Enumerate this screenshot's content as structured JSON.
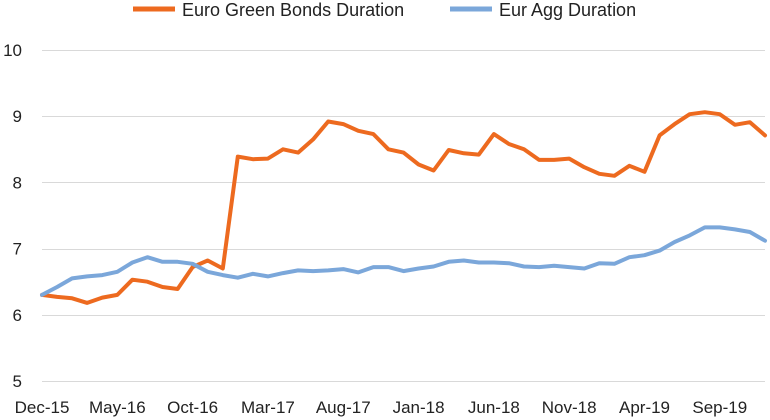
{
  "chart_data": {
    "type": "line",
    "title": "",
    "xlabel": "",
    "ylabel": "",
    "ylim": [
      5,
      10
    ],
    "yticks": [
      5,
      6,
      7,
      8,
      9,
      10
    ],
    "grid": "horizontal",
    "legend_position": "top",
    "x_tick_labels": [
      "Dec-15",
      "May-16",
      "Oct-16",
      "Mar-17",
      "Aug-17",
      "Jan-18",
      "Jun-18",
      "Nov-18",
      "Apr-19",
      "Sep-19"
    ],
    "x": [
      "Dec-15",
      "Jan-16",
      "Feb-16",
      "Mar-16",
      "Apr-16",
      "May-16",
      "Jun-16",
      "Jul-16",
      "Aug-16",
      "Sep-16",
      "Oct-16",
      "Nov-16",
      "Dec-16",
      "Jan-17",
      "Feb-17",
      "Mar-17",
      "Apr-17",
      "May-17",
      "Jun-17",
      "Jul-17",
      "Aug-17",
      "Sep-17",
      "Oct-17",
      "Nov-17",
      "Dec-17",
      "Jan-18",
      "Feb-18",
      "Mar-18",
      "Apr-18",
      "May-18",
      "Jun-18",
      "Jul-18",
      "Aug-18",
      "Sep-18",
      "Oct-18",
      "Nov-18",
      "Dec-18",
      "Jan-19",
      "Feb-19",
      "Mar-19",
      "Apr-19",
      "May-19",
      "Jun-19",
      "Jul-19",
      "Aug-19",
      "Sep-19",
      "Oct-19",
      "Nov-19",
      "Dec-19"
    ],
    "series": [
      {
        "name": "Euro Green Bonds Duration",
        "color": "#ED6A1F",
        "values": [
          6.3,
          6.27,
          6.25,
          6.18,
          6.26,
          6.3,
          6.53,
          6.5,
          6.42,
          6.39,
          6.72,
          6.82,
          6.7,
          8.39,
          8.35,
          8.36,
          8.5,
          8.45,
          8.65,
          8.92,
          8.88,
          8.78,
          8.73,
          8.5,
          8.45,
          8.27,
          8.18,
          8.49,
          8.44,
          8.42,
          8.73,
          8.58,
          8.5,
          8.34,
          8.34,
          8.36,
          8.23,
          8.13,
          8.1,
          8.25,
          8.16,
          8.71,
          8.88,
          9.03,
          9.06,
          9.03,
          8.87,
          8.91,
          8.71
        ]
      },
      {
        "name": "Eur Agg Duration",
        "color": "#7BA7DA",
        "values": [
          6.3,
          6.42,
          6.55,
          6.58,
          6.6,
          6.65,
          6.79,
          6.87,
          6.8,
          6.8,
          6.77,
          6.65,
          6.6,
          6.56,
          6.62,
          6.58,
          6.63,
          6.67,
          6.66,
          6.67,
          6.69,
          6.64,
          6.72,
          6.72,
          6.66,
          6.7,
          6.73,
          6.8,
          6.82,
          6.79,
          6.79,
          6.78,
          6.73,
          6.72,
          6.74,
          6.72,
          6.7,
          6.78,
          6.77,
          6.87,
          6.9,
          6.97,
          7.1,
          7.2,
          7.32,
          7.32,
          7.29,
          7.25,
          7.12
        ]
      }
    ]
  }
}
